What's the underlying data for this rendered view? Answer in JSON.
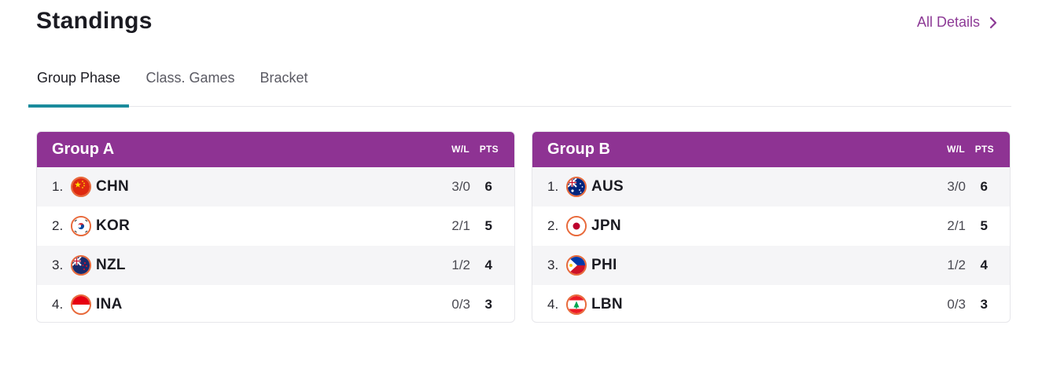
{
  "header": {
    "title": "Standings",
    "all_details_label": "All Details"
  },
  "tabs": [
    {
      "label": "Group Phase",
      "active": true
    },
    {
      "label": "Class. Games",
      "active": false
    },
    {
      "label": "Bracket",
      "active": false
    }
  ],
  "columns": {
    "wl": "W/L",
    "pts": "PTS"
  },
  "colors": {
    "accent": "#8e3393",
    "tab_indicator": "#1a8b9c",
    "link": "#8d3a96"
  },
  "groups": [
    {
      "title": "Group A",
      "rows": [
        {
          "rank": "1.",
          "team": "CHN",
          "flag": "china-flag-icon",
          "wl": "3/0",
          "pts": "6"
        },
        {
          "rank": "2.",
          "team": "KOR",
          "flag": "korea-flag-icon",
          "wl": "2/1",
          "pts": "5"
        },
        {
          "rank": "3.",
          "team": "NZL",
          "flag": "new-zealand-flag-icon",
          "wl": "1/2",
          "pts": "4"
        },
        {
          "rank": "4.",
          "team": "INA",
          "flag": "indonesia-flag-icon",
          "wl": "0/3",
          "pts": "3"
        }
      ]
    },
    {
      "title": "Group B",
      "rows": [
        {
          "rank": "1.",
          "team": "AUS",
          "flag": "australia-flag-icon",
          "wl": "3/0",
          "pts": "6"
        },
        {
          "rank": "2.",
          "team": "JPN",
          "flag": "japan-flag-icon",
          "wl": "2/1",
          "pts": "5"
        },
        {
          "rank": "3.",
          "team": "PHI",
          "flag": "philippines-flag-icon",
          "wl": "1/2",
          "pts": "4"
        },
        {
          "rank": "4.",
          "team": "LBN",
          "flag": "lebanon-flag-icon",
          "wl": "0/3",
          "pts": "3"
        }
      ]
    }
  ]
}
